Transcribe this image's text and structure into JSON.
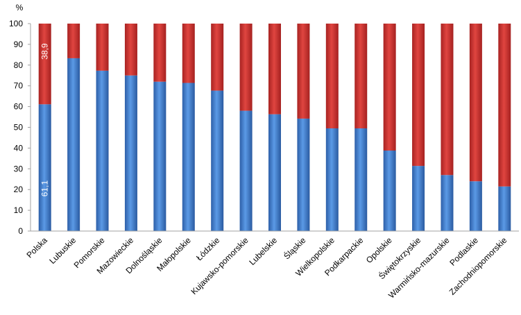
{
  "chart_data": {
    "type": "bar",
    "stacked": true,
    "y_unit": "%",
    "ylim": [
      0,
      100
    ],
    "y_ticks": [
      0,
      10,
      20,
      30,
      40,
      50,
      60,
      70,
      80,
      90,
      100
    ],
    "grid": false,
    "categories": [
      "Polska",
      "Lubuskie",
      "Pomorskie",
      "Mazowieckie",
      "Dolnośląskie",
      "Małopolskie",
      "Łódzkie",
      "Kujawsko-pomorskie",
      "Lubelskie",
      "Śląskie",
      "Wielkopolskie",
      "Podkarpackie",
      "Opolskie",
      "Świętokrzyskie",
      "Warmińsko-mazurskie",
      "Podlaskie",
      "Zachodniopomorskie"
    ],
    "series": [
      {
        "color": "#3f7fd0",
        "values": [
          61.1,
          83.3,
          77.3,
          75.0,
          72.0,
          71.4,
          67.7,
          58.0,
          56.3,
          54.2,
          49.5,
          49.5,
          38.8,
          31.4,
          27.0,
          24.0,
          21.5
        ]
      },
      {
        "color": "#c9302c",
        "values": [
          38.9,
          16.7,
          22.7,
          25.0,
          28.0,
          28.6,
          32.3,
          42.0,
          43.7,
          45.8,
          50.5,
          50.5,
          61.2,
          68.6,
          73.0,
          76.0,
          78.5
        ]
      }
    ],
    "data_labels": [
      {
        "category": "Polska",
        "series": 0,
        "text": "61,1"
      },
      {
        "category": "Polska",
        "series": 1,
        "text": "38,9"
      }
    ]
  }
}
